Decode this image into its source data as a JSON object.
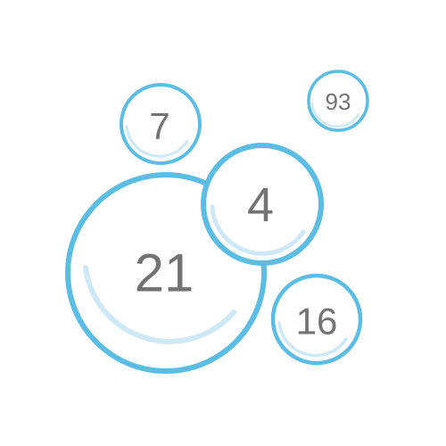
{
  "colors": {
    "background": "#ffffff",
    "ring": "#5bbde4",
    "inner_ring": "#cfe8f6",
    "fill": "#ffffff",
    "text": "#737373"
  },
  "bubbles": [
    {
      "label": "21"
    },
    {
      "label": "4"
    },
    {
      "label": "7"
    },
    {
      "label": "93"
    },
    {
      "label": "16"
    }
  ]
}
